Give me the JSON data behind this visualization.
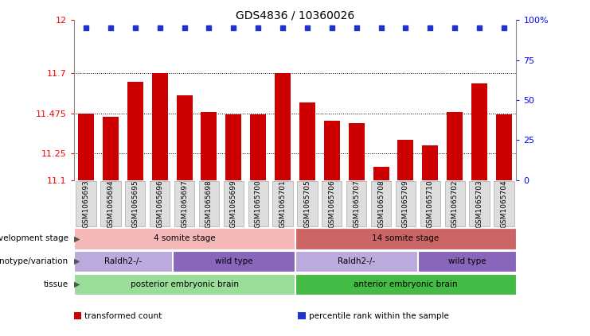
{
  "title": "GDS4836 / 10360026",
  "samples": [
    "GSM1065693",
    "GSM1065694",
    "GSM1065695",
    "GSM1065696",
    "GSM1065697",
    "GSM1065698",
    "GSM1065699",
    "GSM1065700",
    "GSM1065701",
    "GSM1065705",
    "GSM1065706",
    "GSM1065707",
    "GSM1065708",
    "GSM1065709",
    "GSM1065710",
    "GSM1065702",
    "GSM1065703",
    "GSM1065704"
  ],
  "bar_values": [
    11.475,
    11.455,
    11.655,
    11.7,
    11.575,
    11.485,
    11.47,
    11.472,
    11.7,
    11.535,
    11.435,
    11.42,
    11.175,
    11.325,
    11.295,
    11.485,
    11.645,
    11.472
  ],
  "bar_color": "#cc0000",
  "dot_color": "#2233cc",
  "dot_percentile": 95,
  "ymin": 11.1,
  "ymax": 12.0,
  "yticks": [
    11.1,
    11.25,
    11.475,
    11.7,
    12.0
  ],
  "ytick_labels": [
    "11.1",
    "11.25",
    "11.475",
    "11.7",
    "12"
  ],
  "right_yticks": [
    0,
    25,
    50,
    75,
    100
  ],
  "right_ytick_labels": [
    "0",
    "25",
    "50",
    "75",
    "100%"
  ],
  "hlines": [
    11.7,
    11.475,
    11.25
  ],
  "annotation_rows": [
    {
      "label": "tissue",
      "segments": [
        {
          "text": "posterior embryonic brain",
          "start": 0,
          "end": 9,
          "color": "#99dd99"
        },
        {
          "text": "anterior embryonic brain",
          "start": 9,
          "end": 18,
          "color": "#44bb44"
        }
      ]
    },
    {
      "label": "genotype/variation",
      "segments": [
        {
          "text": "Raldh2-/-",
          "start": 0,
          "end": 4,
          "color": "#bbaadd"
        },
        {
          "text": "wild type",
          "start": 4,
          "end": 9,
          "color": "#8866bb"
        },
        {
          "text": "Raldh2-/-",
          "start": 9,
          "end": 14,
          "color": "#bbaadd"
        },
        {
          "text": "wild type",
          "start": 14,
          "end": 18,
          "color": "#8866bb"
        }
      ]
    },
    {
      "label": "development stage",
      "segments": [
        {
          "text": "4 somite stage",
          "start": 0,
          "end": 9,
          "color": "#f5b8b8"
        },
        {
          "text": "14 somite stage",
          "start": 9,
          "end": 18,
          "color": "#cc6666"
        }
      ]
    }
  ],
  "legend": [
    {
      "color": "#cc0000",
      "label": "transformed count"
    },
    {
      "color": "#2233cc",
      "label": "percentile rank within the sample"
    }
  ],
  "xtick_bg": "#dddddd",
  "fig_bg": "white"
}
